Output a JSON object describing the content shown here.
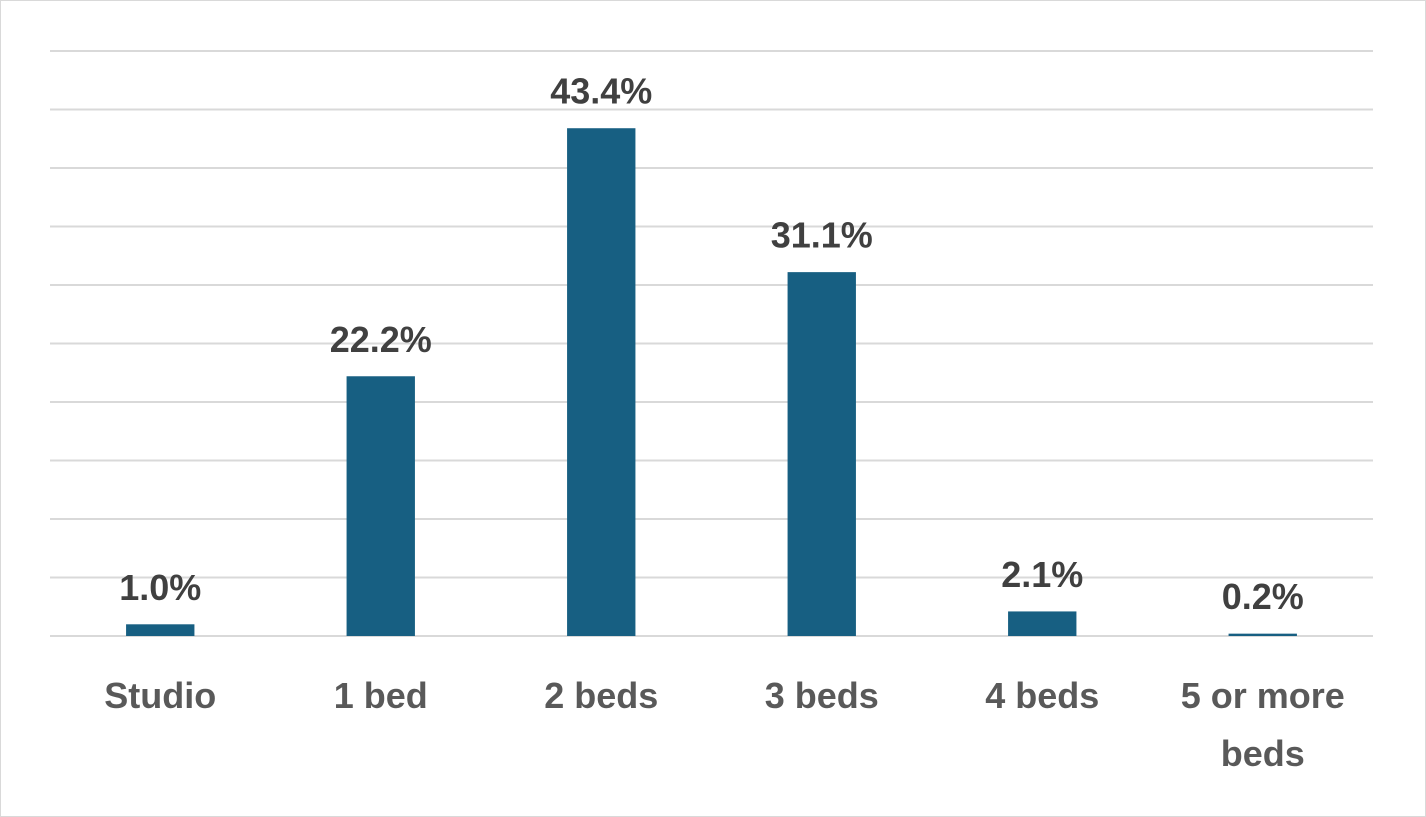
{
  "chart_data": {
    "type": "bar",
    "categories": [
      "Studio",
      "1 bed",
      "2 beds",
      "3 beds",
      "4 beds",
      "5 or more beds"
    ],
    "values": [
      1.0,
      22.2,
      43.4,
      31.1,
      2.1,
      0.2
    ],
    "value_labels": [
      "1.0%",
      "22.2%",
      "43.4%",
      "31.1%",
      "2.1%",
      "0.2%"
    ],
    "color": "#175f82",
    "ylim": [
      0,
      50
    ],
    "yticks": [
      0,
      5,
      10,
      15,
      20,
      25,
      30,
      35,
      40,
      45,
      50
    ],
    "grid": true
  }
}
